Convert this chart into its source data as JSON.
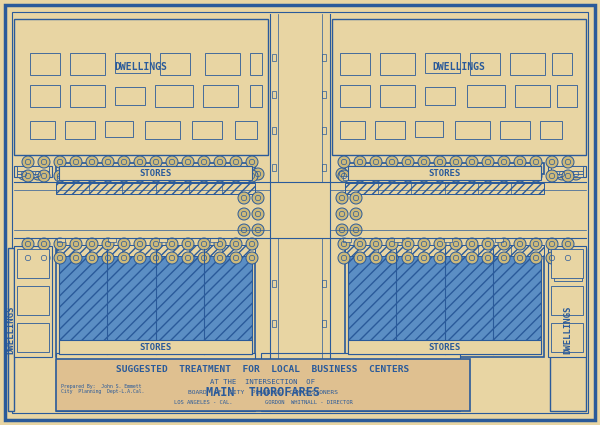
{
  "bg_color": "#e8d5a3",
  "line_color": "#2a5a9a",
  "fill_color": "#5b8ec4",
  "fill_color2": "#3a6aaa",
  "paper_color": "#dfc992",
  "title_line1": "SUGGESTED  TREATMENT  FOR  LOCAL  BUSINESS  CENTERS",
  "title_line2": "AT THE  INTERSECTION  OF",
  "title_line3": "MAIN  THOROFARES",
  "subtitle1": "BOARD  OF  CITY  PLANNING  COMMISSIONERS",
  "subtitle2": "LOS ANGELES - CAL.          GORDON  WHITNALL - DIRECTOR",
  "label_dwellings": "DWELLINGS",
  "label_stores": "STORES",
  "figw": 6.0,
  "figh": 4.25,
  "dpi": 100
}
